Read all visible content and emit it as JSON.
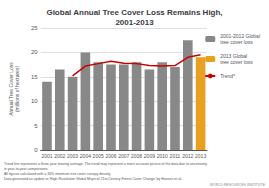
{
  "chart_data": {
    "type": "bar",
    "title": "Global Annual Tree Cover Loss Remains High,\n2001-2013",
    "categories": [
      2001,
      2002,
      2003,
      2004,
      2005,
      2006,
      2007,
      2008,
      2009,
      2010,
      2011,
      2012,
      2013
    ],
    "series": [
      {
        "name": "2001-2012 Global\ntree cover loss",
        "type": "bar",
        "color": "#888888",
        "values": [
          14.0,
          16.5,
          15.0,
          20.0,
          18.0,
          17.5,
          17.5,
          18.0,
          16.5,
          18.0,
          17.0,
          22.5,
          null
        ]
      },
      {
        "name": "2013 Global\ntree cover loss",
        "type": "bar",
        "color": "#E8A020",
        "values": [
          null,
          null,
          null,
          null,
          null,
          null,
          null,
          null,
          null,
          null,
          null,
          null,
          19.0
        ]
      },
      {
        "name": "Trend*",
        "type": "line",
        "color": "#CC0000",
        "values": [
          null,
          null,
          15.2,
          17.2,
          17.7,
          18.2,
          17.8,
          17.7,
          17.3,
          17.2,
          17.3,
          19.0,
          19.5
        ]
      }
    ],
    "ylabel": "Annual Tree Cover Loss\n(millions of hectares)",
    "ylim": [
      0,
      25
    ],
    "yticks": [
      0,
      5,
      10,
      15,
      20,
      25
    ],
    "grid": true,
    "legend": "right",
    "annotations": [
      "Trend line represents a three-year moving average. The trend may represent a more accurate picture of the data due to uncertainty\nin year-to-year comparisons.\nAll figures calculated with a 30% minimum tree cover canopy density.\nData generated as update to ‘High-Resolution Global Maps of 21st-Century Forest Cover Change’ by Hansen et al.",
      "WORLD RESOURCES INSTITUTE"
    ]
  }
}
